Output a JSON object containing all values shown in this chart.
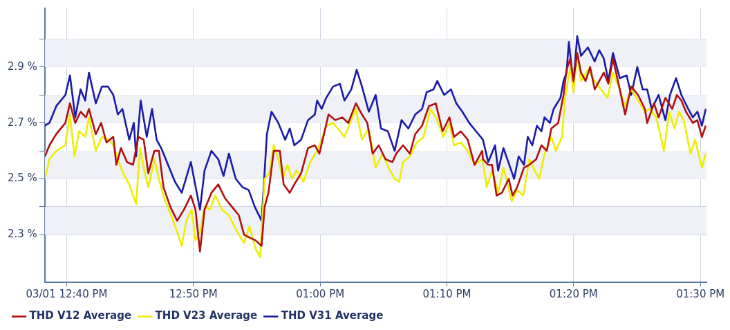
{
  "chart_data": {
    "type": "line",
    "xlim": [
      12.638,
      13.508
    ],
    "xticks": [
      {
        "value": 12.6667,
        "label": "03/01 12:40 PM"
      },
      {
        "value": 12.8333,
        "label": "12:50 PM"
      },
      {
        "value": 13,
        "label": "01:00 PM"
      },
      {
        "value": 13.1667,
        "label": "01:10 PM"
      },
      {
        "value": 13.3333,
        "label": "01:20 PM"
      },
      {
        "value": 13.5,
        "label": "01:30 PM"
      }
    ],
    "ylim": [
      2.13,
      3.11
    ],
    "yticks": [
      {
        "value": 2.3,
        "label": "2.3 %"
      },
      {
        "value": 2.4,
        "label": null
      },
      {
        "value": 2.5,
        "label": "2.5 %"
      },
      {
        "value": 2.6,
        "label": null
      },
      {
        "value": 2.7,
        "label": "2.7 %"
      },
      {
        "value": 2.8,
        "label": null
      },
      {
        "value": 2.9,
        "label": "2.9 %"
      },
      {
        "value": 3.0,
        "label": null
      }
    ],
    "grid": true,
    "legend": "bottom left",
    "marker": "none",
    "line_style": "solid",
    "series": [
      {
        "name": "THD V12 Average",
        "color": "#b01010",
        "x": [
          12.638,
          12.644,
          12.653,
          12.665,
          12.671,
          12.678,
          12.685,
          12.692,
          12.696,
          12.705,
          12.712,
          12.719,
          12.728,
          12.732,
          12.738,
          12.746,
          12.754,
          12.761,
          12.768,
          12.774,
          12.782,
          12.788,
          12.794,
          12.803,
          12.812,
          12.821,
          12.83,
          12.836,
          12.842,
          12.848,
          12.857,
          12.866,
          12.875,
          12.884,
          12.893,
          12.9,
          12.907,
          12.915,
          12.923,
          12.927,
          12.932,
          12.939,
          12.947,
          12.952,
          12.96,
          12.966,
          12.975,
          12.984,
          12.993,
          12.999,
          13.005,
          13.011,
          13.02,
          13.029,
          13.037,
          13.047,
          13.055,
          13.062,
          13.069,
          13.077,
          13.086,
          13.095,
          13.1,
          13.109,
          13.118,
          13.125,
          13.134,
          13.143,
          13.152,
          13.161,
          13.17,
          13.176,
          13.185,
          13.194,
          13.203,
          13.213,
          13.214,
          13.221,
          13.226,
          13.232,
          13.239,
          13.248,
          13.253,
          13.259,
          13.268,
          13.275,
          13.284,
          13.291,
          13.298,
          13.304,
          13.313,
          13.32,
          13.324,
          13.329,
          13.333,
          13.338,
          13.343,
          13.349,
          13.355,
          13.361,
          13.367,
          13.373,
          13.379,
          13.385,
          13.394,
          13.401,
          13.409,
          13.418,
          13.427,
          13.43,
          13.439,
          13.445,
          13.454,
          13.463,
          13.469,
          13.475,
          13.481,
          13.49,
          13.496,
          13.502,
          13.507
        ],
        "values": [
          2.58,
          2.62,
          2.66,
          2.7,
          2.77,
          2.7,
          2.74,
          2.72,
          2.75,
          2.66,
          2.7,
          2.63,
          2.65,
          2.55,
          2.61,
          2.56,
          2.55,
          2.65,
          2.64,
          2.52,
          2.6,
          2.6,
          2.47,
          2.4,
          2.35,
          2.39,
          2.44,
          2.39,
          2.24,
          2.39,
          2.45,
          2.48,
          2.43,
          2.4,
          2.37,
          2.3,
          2.29,
          2.28,
          2.26,
          2.4,
          2.45,
          2.6,
          2.6,
          2.48,
          2.45,
          2.48,
          2.52,
          2.61,
          2.62,
          2.59,
          2.66,
          2.73,
          2.71,
          2.72,
          2.7,
          2.77,
          2.73,
          2.7,
          2.59,
          2.62,
          2.57,
          2.56,
          2.59,
          2.62,
          2.59,
          2.66,
          2.69,
          2.76,
          2.77,
          2.67,
          2.72,
          2.65,
          2.67,
          2.64,
          2.55,
          2.6,
          2.57,
          2.55,
          2.55,
          2.44,
          2.45,
          2.5,
          2.44,
          2.47,
          2.54,
          2.55,
          2.57,
          2.62,
          2.6,
          2.68,
          2.7,
          2.8,
          2.89,
          2.93,
          2.85,
          2.95,
          2.88,
          2.85,
          2.9,
          2.82,
          2.85,
          2.88,
          2.84,
          2.93,
          2.82,
          2.73,
          2.83,
          2.8,
          2.75,
          2.7,
          2.77,
          2.72,
          2.79,
          2.75,
          2.8,
          2.78,
          2.74,
          2.7,
          2.71,
          2.65,
          2.69
        ]
      },
      {
        "name": "THD V23 Average",
        "color": "#eeee00",
        "x": [
          12.638,
          12.644,
          12.653,
          12.665,
          12.671,
          12.677,
          12.683,
          12.691,
          12.696,
          12.705,
          12.713,
          12.722,
          12.728,
          12.734,
          12.741,
          12.749,
          12.758,
          12.763,
          12.768,
          12.774,
          12.782,
          12.788,
          12.795,
          12.804,
          12.812,
          12.818,
          12.824,
          12.831,
          12.836,
          12.842,
          12.848,
          12.855,
          12.862,
          12.871,
          12.88,
          12.889,
          12.9,
          12.907,
          12.915,
          12.921,
          12.927,
          12.933,
          12.939,
          12.945,
          12.951,
          12.957,
          12.963,
          12.969,
          12.978,
          12.987,
          12.996,
          13.002,
          13.008,
          13.017,
          13.026,
          13.032,
          13.041,
          13.047,
          13.055,
          13.064,
          13.073,
          13.082,
          13.09,
          13.098,
          13.104,
          13.109,
          13.118,
          13.127,
          13.136,
          13.145,
          13.154,
          13.162,
          13.17,
          13.176,
          13.185,
          13.194,
          13.203,
          13.213,
          13.214,
          13.219,
          13.226,
          13.234,
          13.241,
          13.252,
          13.259,
          13.267,
          13.275,
          13.282,
          13.288,
          13.295,
          13.304,
          13.31,
          13.318,
          13.322,
          13.329,
          13.333,
          13.338,
          13.343,
          13.352,
          13.361,
          13.369,
          13.378,
          13.385,
          13.394,
          13.4,
          13.409,
          13.418,
          13.427,
          13.433,
          13.442,
          13.452,
          13.459,
          13.466,
          13.472,
          13.478,
          13.487,
          13.493,
          13.502,
          13.507
        ],
        "values": [
          2.5,
          2.57,
          2.6,
          2.62,
          2.73,
          2.58,
          2.67,
          2.65,
          2.72,
          2.6,
          2.65,
          2.64,
          2.62,
          2.57,
          2.52,
          2.48,
          2.41,
          2.61,
          2.54,
          2.47,
          2.57,
          2.5,
          2.43,
          2.37,
          2.31,
          2.26,
          2.35,
          2.39,
          2.28,
          2.31,
          2.4,
          2.39,
          2.44,
          2.39,
          2.37,
          2.32,
          2.27,
          2.33,
          2.25,
          2.22,
          2.5,
          2.52,
          2.62,
          2.57,
          2.5,
          2.55,
          2.5,
          2.53,
          2.49,
          2.56,
          2.6,
          2.64,
          2.69,
          2.7,
          2.67,
          2.65,
          2.71,
          2.75,
          2.64,
          2.68,
          2.54,
          2.59,
          2.54,
          2.5,
          2.49,
          2.56,
          2.58,
          2.63,
          2.65,
          2.75,
          2.71,
          2.65,
          2.7,
          2.62,
          2.63,
          2.6,
          2.55,
          2.57,
          2.56,
          2.47,
          2.53,
          2.45,
          2.54,
          2.42,
          2.46,
          2.44,
          2.57,
          2.53,
          2.5,
          2.59,
          2.65,
          2.6,
          2.65,
          2.79,
          2.9,
          2.81,
          2.95,
          2.85,
          2.89,
          2.85,
          2.82,
          2.79,
          2.88,
          2.82,
          2.76,
          2.82,
          2.78,
          2.74,
          2.75,
          2.72,
          2.6,
          2.74,
          2.68,
          2.74,
          2.71,
          2.59,
          2.64,
          2.54,
          2.59
        ]
      },
      {
        "name": "THD V31 Average",
        "color": "#1a1aa8",
        "x": [
          12.638,
          12.644,
          12.653,
          12.665,
          12.671,
          12.678,
          12.685,
          12.691,
          12.696,
          12.705,
          12.713,
          12.721,
          12.728,
          12.734,
          12.74,
          12.749,
          12.755,
          12.758,
          12.764,
          12.772,
          12.779,
          12.785,
          12.791,
          12.8,
          12.809,
          12.818,
          12.83,
          12.842,
          12.848,
          12.857,
          12.866,
          12.873,
          12.88,
          12.889,
          12.898,
          12.906,
          12.914,
          12.923,
          12.93,
          12.936,
          12.945,
          12.954,
          12.96,
          12.966,
          12.975,
          12.984,
          12.993,
          12.996,
          13.002,
          13.008,
          13.017,
          13.026,
          13.032,
          13.041,
          13.048,
          13.055,
          13.064,
          13.073,
          13.08,
          13.089,
          13.098,
          13.107,
          13.116,
          13.125,
          13.134,
          13.14,
          13.149,
          13.154,
          13.163,
          13.172,
          13.179,
          13.187,
          13.196,
          13.205,
          13.214,
          13.221,
          13.23,
          13.234,
          13.241,
          13.25,
          13.255,
          13.261,
          13.268,
          13.273,
          13.279,
          13.285,
          13.291,
          13.295,
          13.302,
          13.307,
          13.316,
          13.32,
          13.324,
          13.327,
          13.333,
          13.338,
          13.343,
          13.352,
          13.361,
          13.367,
          13.373,
          13.379,
          13.385,
          13.394,
          13.403,
          13.409,
          13.417,
          13.424,
          13.43,
          13.436,
          13.445,
          13.454,
          13.46,
          13.468,
          13.475,
          13.484,
          13.49,
          13.496,
          13.502,
          13.507
        ],
        "values": [
          2.69,
          2.7,
          2.76,
          2.8,
          2.87,
          2.72,
          2.82,
          2.78,
          2.88,
          2.77,
          2.83,
          2.83,
          2.8,
          2.73,
          2.75,
          2.64,
          2.7,
          2.58,
          2.78,
          2.65,
          2.75,
          2.64,
          2.61,
          2.55,
          2.49,
          2.45,
          2.56,
          2.39,
          2.53,
          2.6,
          2.57,
          2.51,
          2.59,
          2.5,
          2.47,
          2.46,
          2.4,
          2.35,
          2.66,
          2.74,
          2.7,
          2.64,
          2.68,
          2.62,
          2.64,
          2.71,
          2.73,
          2.78,
          2.75,
          2.79,
          2.83,
          2.84,
          2.78,
          2.82,
          2.89,
          2.83,
          2.74,
          2.8,
          2.68,
          2.67,
          2.6,
          2.71,
          2.68,
          2.73,
          2.75,
          2.81,
          2.82,
          2.85,
          2.8,
          2.82,
          2.77,
          2.74,
          2.7,
          2.67,
          2.64,
          2.56,
          2.62,
          2.53,
          2.61,
          2.54,
          2.5,
          2.58,
          2.55,
          2.65,
          2.62,
          2.69,
          2.67,
          2.72,
          2.7,
          2.75,
          2.79,
          2.85,
          2.88,
          2.99,
          2.84,
          3.01,
          2.94,
          2.97,
          2.92,
          2.96,
          2.93,
          2.85,
          2.95,
          2.86,
          2.87,
          2.8,
          2.9,
          2.82,
          2.82,
          2.75,
          2.8,
          2.71,
          2.8,
          2.86,
          2.8,
          2.75,
          2.72,
          2.74,
          2.69,
          2.75
        ]
      }
    ]
  }
}
